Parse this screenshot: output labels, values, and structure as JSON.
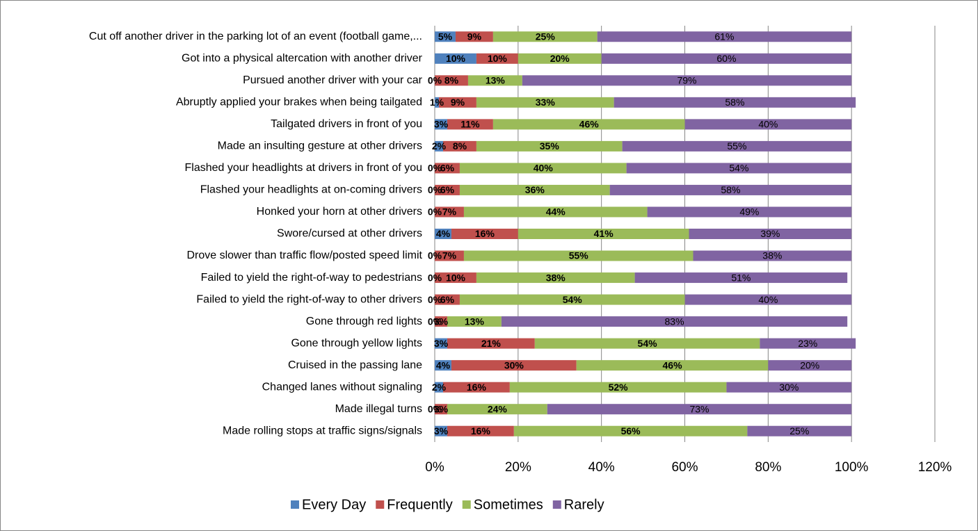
{
  "chart_data": {
    "type": "bar",
    "orientation": "horizontal",
    "stacked": true,
    "grid": true,
    "legend": "bottom",
    "categories": [
      "Cut off another driver in the parking lot of an event (football game,...",
      "Got into a physical altercation with another driver",
      "Pursued another driver with your car",
      "Abruptly applied your brakes when being tailgated",
      "Tailgated drivers in front of you",
      "Made an insulting gesture at other drivers",
      "Flashed your headlights at drivers in front of you",
      "Flashed your headlights at on-coming drivers",
      "Honked your horn at other drivers",
      "Swore/cursed at other drivers",
      "Drove slower than traffic flow/posted speed limit",
      "Failed to yield the right-of-way to pedestrians",
      "Failed to yield the right-of-way to other drivers",
      "Gone through red lights",
      "Gone through yellow lights",
      "Cruised in the passing lane",
      "Changed lanes without signaling",
      "Made illegal turns",
      "Made rolling stops at traffic signs/signals"
    ],
    "series": [
      {
        "name": "Every Day",
        "color": "#4f81bd",
        "values": [
          5,
          10,
          0,
          1,
          3,
          2,
          0,
          0,
          0,
          4,
          0,
          0,
          0,
          0,
          3,
          4,
          2,
          0,
          3
        ],
        "value_labels": [
          "5%",
          "10%",
          "0%",
          "1%",
          "3%",
          "2%",
          "0%",
          "0%",
          "0%",
          "4%",
          "0%",
          "0%",
          "0%",
          "0%",
          "3%",
          "4%",
          "2%",
          "0%",
          "3%"
        ]
      },
      {
        "name": "Frequently",
        "color": "#c0504d",
        "values": [
          9,
          10,
          8,
          9,
          11,
          8,
          6,
          6,
          7,
          16,
          7,
          10,
          6,
          3,
          21,
          30,
          16,
          3,
          16
        ],
        "value_labels": [
          "9%",
          "10%",
          "8%",
          "9%",
          "11%",
          "8%",
          "6%",
          "6%",
          "7%",
          "16%",
          "7%",
          "10%",
          "6%",
          "3%",
          "21%",
          "30%",
          "16%",
          "3%",
          "16%"
        ]
      },
      {
        "name": "Sometimes",
        "color": "#9bbb59",
        "values": [
          25,
          20,
          13,
          33,
          46,
          35,
          40,
          36,
          44,
          41,
          55,
          38,
          54,
          13,
          54,
          46,
          52,
          24,
          56
        ],
        "value_labels": [
          "25%",
          "20%",
          "13%",
          "33%",
          "46%",
          "35%",
          "40%",
          "36%",
          "44%",
          "41%",
          "55%",
          "38%",
          "54%",
          "13%",
          "54%",
          "46%",
          "52%",
          "24%",
          "56%"
        ]
      },
      {
        "name": "Rarely",
        "color": "#8064a2",
        "values": [
          61,
          60,
          79,
          58,
          40,
          55,
          54,
          58,
          49,
          39,
          38,
          51,
          40,
          83,
          23,
          20,
          30,
          73,
          25
        ],
        "value_labels": [
          "61%",
          "60%",
          "79%",
          "58%",
          "40%",
          "55%",
          "54%",
          "58%",
          "49%",
          "39%",
          "38%",
          "51%",
          "40%",
          "83%",
          "23%",
          "20%",
          "30%",
          "73%",
          "25%"
        ]
      }
    ],
    "xlim": [
      0,
      120
    ],
    "xticks": [
      {
        "value": 0,
        "label": "0%"
      },
      {
        "value": 20,
        "label": "20%"
      },
      {
        "value": 40,
        "label": "40%"
      },
      {
        "value": 60,
        "label": "60%"
      },
      {
        "value": 80,
        "label": "80%"
      },
      {
        "value": 100,
        "label": "100%"
      },
      {
        "value": 120,
        "label": "120%"
      }
    ]
  }
}
